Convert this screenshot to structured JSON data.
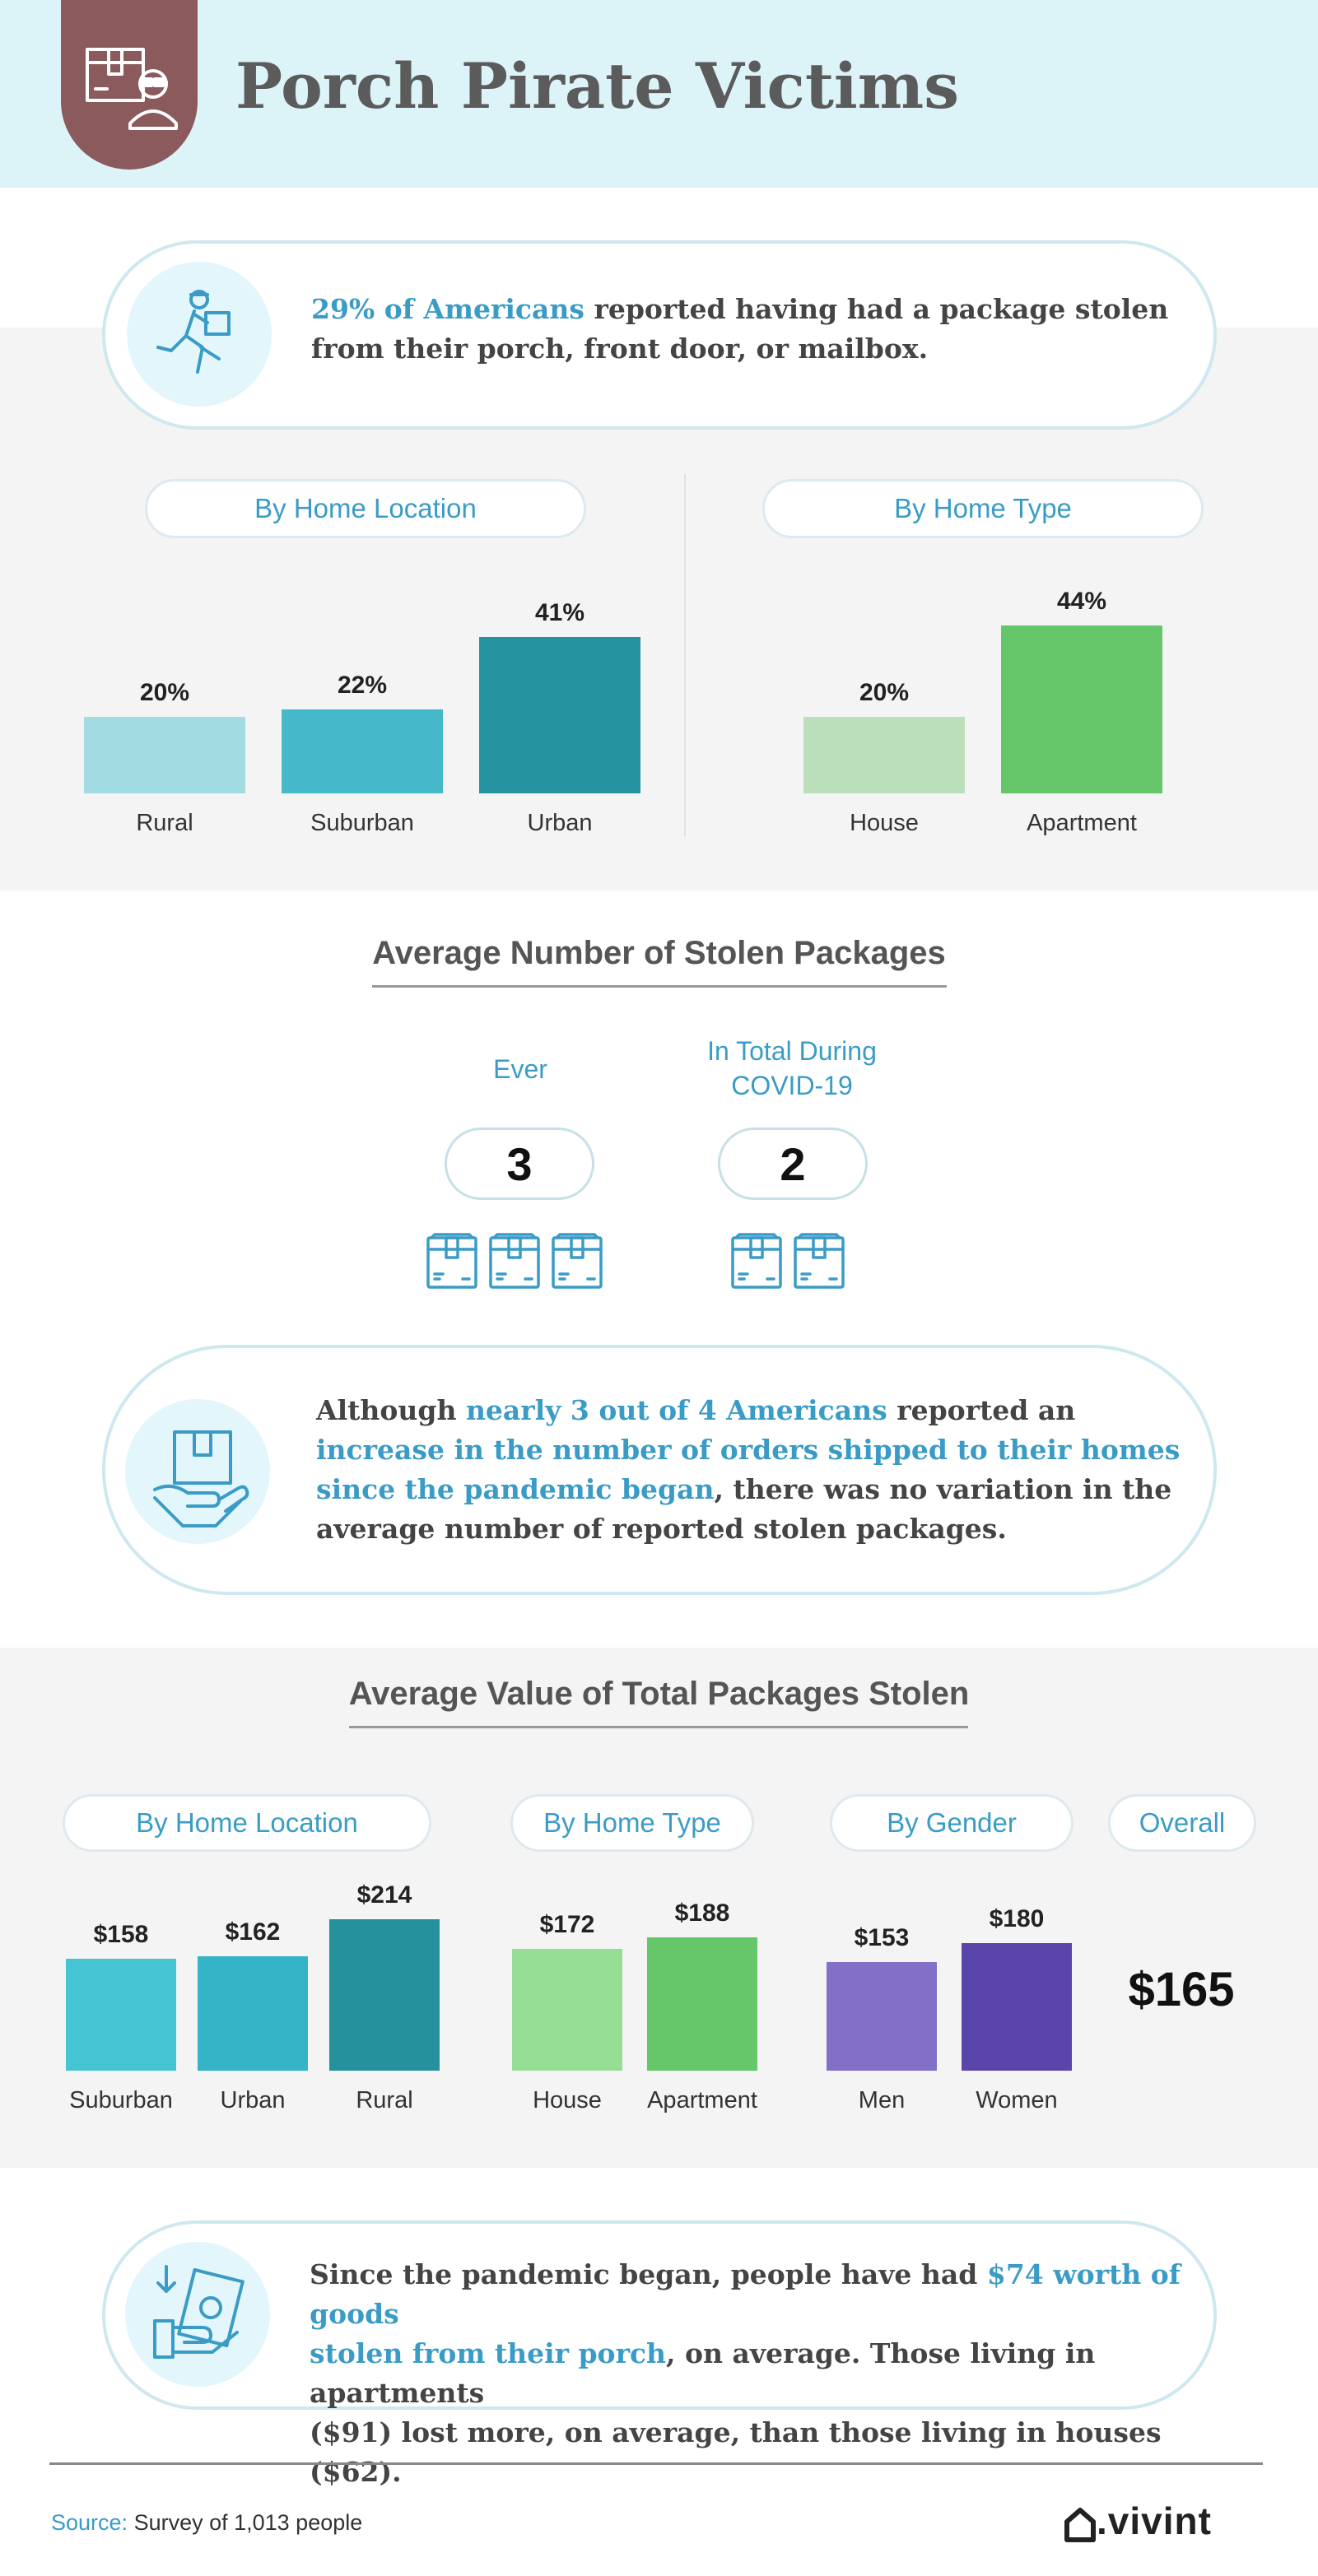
{
  "header": {
    "title": "Porch Pirate Victims",
    "icon": "package-thief-icon",
    "colors": {
      "band": "#dcf3f7",
      "tab": "#8a5a5c"
    }
  },
  "callouts": {
    "stolen_share": {
      "icon": "delivery-runner-icon",
      "highlight": "29% of Americans",
      "rest_line1": " reported having had a package stolen",
      "line2": "from their porch, front door, or mailbox."
    },
    "orders_increase": {
      "icon": "box-in-hand-icon",
      "l1_a": "Although ",
      "l1_hl": "nearly 3 out of 4 Americans",
      "l1_b": " reported an",
      "l2_hl": "increase in the number of orders shipped to their homes",
      "l3_hl": "since the pandemic began",
      "l3_b": ", there was no variation in the",
      "l4": "average number of reported stolen packages."
    },
    "value_lost": {
      "icon": "cash-in-hand-icon",
      "l1_a": "Since the pandemic began, people have had ",
      "l1_hl": "$74 worth of goods",
      "l2_hl": "stolen from their porch",
      "l2_b": ", on average. Those living in apartments",
      "l3": "($91) lost more, on average, than those living in houses ($62)."
    }
  },
  "chart_data": [
    {
      "type": "bar",
      "title": "By Home Location",
      "categories": [
        "Rural",
        "Suburban",
        "Urban"
      ],
      "values": [
        20,
        22,
        41
      ],
      "labels": [
        "20%",
        "22%",
        "41%"
      ],
      "colors": [
        "#a3dbe3",
        "#45b9c9",
        "#2592a0"
      ],
      "ylim": [
        0,
        44
      ]
    },
    {
      "type": "bar",
      "title": "By Home Type",
      "categories": [
        "House",
        "Apartment"
      ],
      "values": [
        20,
        44
      ],
      "labels": [
        "20%",
        "44%"
      ],
      "colors": [
        "#bbdfbb",
        "#66c66a"
      ],
      "ylim": [
        0,
        44
      ]
    },
    {
      "type": "table",
      "title": "Average Number of Stolen Packages",
      "categories": [
        "Ever",
        "In Total During COVID-19"
      ],
      "values": [
        3,
        2
      ]
    },
    {
      "type": "bar",
      "title": "By Home Location",
      "categories": [
        "Suburban",
        "Urban",
        "Rural"
      ],
      "values": [
        158,
        162,
        214
      ],
      "labels": [
        "$158",
        "$162",
        "$214"
      ],
      "colors": [
        "#45c5d3",
        "#34b4c6",
        "#24919c"
      ],
      "ylim": [
        0,
        214
      ]
    },
    {
      "type": "bar",
      "title": "By Home Type",
      "categories": [
        "House",
        "Apartment"
      ],
      "values": [
        172,
        188
      ],
      "labels": [
        "$172",
        "$188"
      ],
      "colors": [
        "#96de96",
        "#66c66a"
      ],
      "ylim": [
        0,
        214
      ]
    },
    {
      "type": "bar",
      "title": "By Gender",
      "categories": [
        "Men",
        "Women"
      ],
      "values": [
        153,
        180
      ],
      "labels": [
        "$153",
        "$180"
      ],
      "colors": [
        "#8270c8",
        "#5a46aa"
      ],
      "ylim": [
        0,
        214
      ]
    },
    {
      "type": "table",
      "title": "Overall",
      "values": [
        165
      ],
      "labels": [
        "$165"
      ]
    }
  ],
  "sections": {
    "count_title": "Average Number of Stolen Packages",
    "count_label_ever": "Ever",
    "count_label_covid_1": "In Total During",
    "count_label_covid_2": "COVID-19",
    "count_ever": "3",
    "count_covid": "2",
    "value_title": "Average Value of Total Packages Stolen",
    "overall_label": "Overall",
    "overall_value": "$165"
  },
  "footer": {
    "source_label": "Source:",
    "source_text": " Survey of 1,013 people",
    "logo": ".vivint",
    "logo_icon": "house-logo-icon"
  },
  "icons": {
    "package": "package-icon"
  }
}
